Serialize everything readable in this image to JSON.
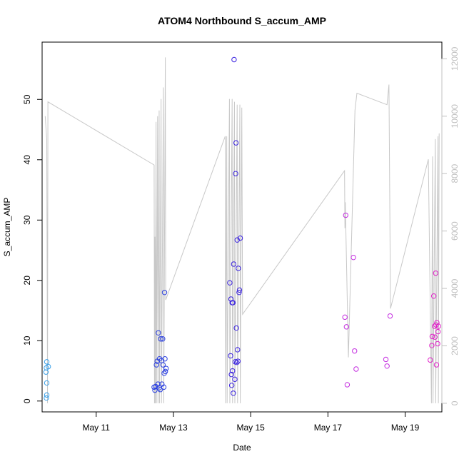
{
  "chart_data": {
    "type": "scatter",
    "title": "ATOM4 Northbound S_accum_AMP",
    "xlabel": "Date",
    "ylabel": "S_accum_AMP",
    "xlim": [
      9.6,
      19.95
    ],
    "ylim": [
      -1.8,
      59.5
    ],
    "yticks": [
      0,
      10,
      20,
      30,
      40,
      50
    ],
    "xticks": [
      {
        "value": 11,
        "label": "May 11"
      },
      {
        "value": 13,
        "label": "May 13"
      },
      {
        "value": 15,
        "label": "May 15"
      },
      {
        "value": 17,
        "label": "May 17"
      },
      {
        "value": 19,
        "label": "May 19"
      }
    ],
    "right_axis": {
      "ylim": [
        -300,
        12580
      ],
      "ticks": [
        0,
        2000,
        4000,
        6000,
        8000,
        10000,
        12000
      ],
      "color": "#c0c0c0"
    },
    "grid": false,
    "points": [
      {
        "x": 9.72,
        "y": 6.5,
        "color": "#3aa0e8"
      },
      {
        "x": 9.71,
        "y": 5.5,
        "color": "#3aa0e8"
      },
      {
        "x": 9.76,
        "y": 5.7,
        "color": "#3aa0e8"
      },
      {
        "x": 9.7,
        "y": 4.8,
        "color": "#3aa0e8"
      },
      {
        "x": 9.72,
        "y": 3.0,
        "color": "#3aa0e8"
      },
      {
        "x": 9.72,
        "y": 1.0,
        "color": "#3aa0e8"
      },
      {
        "x": 9.71,
        "y": 0.5,
        "color": "#3aa0e8"
      },
      {
        "x": 12.5,
        "y": 2.3,
        "color": "#2a3fe0"
      },
      {
        "x": 12.52,
        "y": 1.8,
        "color": "#2a3fe0"
      },
      {
        "x": 12.54,
        "y": 2.4,
        "color": "#2a3fe0"
      },
      {
        "x": 12.56,
        "y": 6.0,
        "color": "#2a3fe0"
      },
      {
        "x": 12.58,
        "y": 6.6,
        "color": "#2a3fe0"
      },
      {
        "x": 12.6,
        "y": 2.8,
        "color": "#2a3fe0"
      },
      {
        "x": 12.61,
        "y": 11.3,
        "color": "#2a3fe0"
      },
      {
        "x": 12.63,
        "y": 2.2,
        "color": "#2a3fe0"
      },
      {
        "x": 12.64,
        "y": 7.0,
        "color": "#2a3fe0"
      },
      {
        "x": 12.66,
        "y": 1.9,
        "color": "#2a3fe0"
      },
      {
        "x": 12.67,
        "y": 10.3,
        "color": "#2a3fe0"
      },
      {
        "x": 12.69,
        "y": 6.7,
        "color": "#2a3fe0"
      },
      {
        "x": 12.7,
        "y": 2.8,
        "color": "#2a3fe0"
      },
      {
        "x": 12.72,
        "y": 10.3,
        "color": "#2a3fe0"
      },
      {
        "x": 12.73,
        "y": 6.0,
        "color": "#2a3fe0"
      },
      {
        "x": 12.75,
        "y": 2.3,
        "color": "#2a3fe0"
      },
      {
        "x": 12.76,
        "y": 4.6,
        "color": "#2a3fe0"
      },
      {
        "x": 12.77,
        "y": 18.0,
        "color": "#2a3fe0"
      },
      {
        "x": 12.78,
        "y": 7.0,
        "color": "#2a3fe0"
      },
      {
        "x": 12.79,
        "y": 4.9,
        "color": "#2a3fe0"
      },
      {
        "x": 12.81,
        "y": 5.4,
        "color": "#2a3fe0"
      },
      {
        "x": 14.46,
        "y": 19.6,
        "color": "#3a22e0"
      },
      {
        "x": 14.48,
        "y": 7.5,
        "color": "#3a22e0"
      },
      {
        "x": 14.49,
        "y": 16.9,
        "color": "#3a22e0"
      },
      {
        "x": 14.5,
        "y": 4.4,
        "color": "#3a22e0"
      },
      {
        "x": 14.51,
        "y": 2.6,
        "color": "#3a22e0"
      },
      {
        "x": 14.52,
        "y": 16.3,
        "color": "#3a22e0"
      },
      {
        "x": 14.53,
        "y": 5.0,
        "color": "#3a22e0"
      },
      {
        "x": 14.54,
        "y": 16.3,
        "color": "#3a22e0"
      },
      {
        "x": 14.55,
        "y": 1.3,
        "color": "#3a22e0"
      },
      {
        "x": 14.56,
        "y": 22.7,
        "color": "#3a22e0"
      },
      {
        "x": 14.57,
        "y": 56.6,
        "color": "#3a22e0"
      },
      {
        "x": 14.59,
        "y": 3.6,
        "color": "#3a22e0"
      },
      {
        "x": 14.6,
        "y": 6.5,
        "color": "#3a22e0"
      },
      {
        "x": 14.61,
        "y": 37.7,
        "color": "#3a22e0"
      },
      {
        "x": 14.62,
        "y": 42.8,
        "color": "#3a22e0"
      },
      {
        "x": 14.63,
        "y": 12.1,
        "color": "#3a22e0"
      },
      {
        "x": 14.64,
        "y": 6.4,
        "color": "#3a22e0"
      },
      {
        "x": 14.65,
        "y": 26.7,
        "color": "#3a22e0"
      },
      {
        "x": 14.66,
        "y": 8.5,
        "color": "#3a22e0"
      },
      {
        "x": 14.67,
        "y": 6.6,
        "color": "#3a22e0"
      },
      {
        "x": 14.68,
        "y": 22.0,
        "color": "#3a22e0"
      },
      {
        "x": 14.7,
        "y": 18.0,
        "color": "#3a22e0"
      },
      {
        "x": 14.71,
        "y": 18.4,
        "color": "#3a22e0"
      },
      {
        "x": 14.73,
        "y": 27.0,
        "color": "#3a22e0"
      },
      {
        "x": 17.44,
        "y": 13.9,
        "color": "#c42ee0"
      },
      {
        "x": 17.46,
        "y": 30.8,
        "color": "#c42ee0"
      },
      {
        "x": 17.48,
        "y": 12.3,
        "color": "#c42ee0"
      },
      {
        "x": 17.5,
        "y": 2.7,
        "color": "#c42ee0"
      },
      {
        "x": 17.66,
        "y": 23.8,
        "color": "#c42ee0"
      },
      {
        "x": 17.69,
        "y": 8.3,
        "color": "#c42ee0"
      },
      {
        "x": 17.73,
        "y": 5.3,
        "color": "#c42ee0"
      },
      {
        "x": 18.5,
        "y": 6.9,
        "color": "#c42ee0"
      },
      {
        "x": 18.53,
        "y": 5.8,
        "color": "#c42ee0"
      },
      {
        "x": 18.61,
        "y": 14.1,
        "color": "#c42ee0"
      },
      {
        "x": 19.65,
        "y": 6.8,
        "color": "#e020c8"
      },
      {
        "x": 19.69,
        "y": 9.2,
        "color": "#e020c8"
      },
      {
        "x": 19.7,
        "y": 10.7,
        "color": "#e020c8"
      },
      {
        "x": 19.74,
        "y": 17.4,
        "color": "#e020c8"
      },
      {
        "x": 19.76,
        "y": 12.4,
        "color": "#e020c8"
      },
      {
        "x": 19.77,
        "y": 10.6,
        "color": "#e020c8"
      },
      {
        "x": 19.79,
        "y": 21.2,
        "color": "#e020c8"
      },
      {
        "x": 19.8,
        "y": 12.6,
        "color": "#e020c8"
      },
      {
        "x": 19.81,
        "y": 6.0,
        "color": "#e020c8"
      },
      {
        "x": 19.82,
        "y": 13.0,
        "color": "#e020c8"
      },
      {
        "x": 19.84,
        "y": 9.5,
        "color": "#e020c8"
      },
      {
        "x": 19.85,
        "y": 11.5,
        "color": "#e020c8"
      },
      {
        "x": 19.86,
        "y": 12.4,
        "color": "#e020c8"
      }
    ],
    "line_series": {
      "color": "#c8c8c8",
      "axis": "right",
      "points": [
        [
          9.68,
          10000
        ],
        [
          9.72,
          9200
        ],
        [
          9.74,
          0
        ],
        [
          9.75,
          10500
        ],
        [
          12.5,
          8300
        ],
        [
          12.51,
          0
        ],
        [
          12.52,
          5800
        ],
        [
          12.53,
          0
        ],
        [
          12.55,
          9800
        ],
        [
          12.56,
          0
        ],
        [
          12.59,
          10000
        ],
        [
          12.6,
          0
        ],
        [
          12.63,
          10200
        ],
        [
          12.64,
          0
        ],
        [
          12.68,
          10600
        ],
        [
          12.69,
          0
        ],
        [
          12.74,
          11000
        ],
        [
          12.75,
          0
        ],
        [
          12.79,
          12050
        ],
        [
          12.8,
          3600
        ],
        [
          14.34,
          9300
        ],
        [
          14.35,
          0
        ],
        [
          14.38,
          9300
        ],
        [
          14.39,
          0
        ],
        [
          14.45,
          10600
        ],
        [
          14.46,
          0
        ],
        [
          14.52,
          10600
        ],
        [
          14.53,
          0
        ],
        [
          14.58,
          10500
        ],
        [
          14.59,
          0
        ],
        [
          14.65,
          10400
        ],
        [
          14.66,
          0
        ],
        [
          14.72,
          10400
        ],
        [
          14.73,
          0
        ],
        [
          14.77,
          10300
        ],
        [
          14.79,
          3100
        ],
        [
          17.43,
          8100
        ],
        [
          17.44,
          6100
        ],
        [
          17.45,
          7000
        ],
        [
          17.53,
          1600
        ],
        [
          17.7,
          10200
        ],
        [
          17.75,
          10800
        ],
        [
          18.53,
          10400
        ],
        [
          18.58,
          11100
        ],
        [
          18.62,
          3300
        ],
        [
          19.6,
          8500
        ],
        [
          19.68,
          0
        ],
        [
          19.71,
          8600
        ],
        [
          19.72,
          0
        ],
        [
          19.78,
          9200
        ],
        [
          19.79,
          0
        ],
        [
          19.85,
          9300
        ],
        [
          19.86,
          0
        ],
        [
          19.88,
          9400
        ]
      ]
    }
  }
}
